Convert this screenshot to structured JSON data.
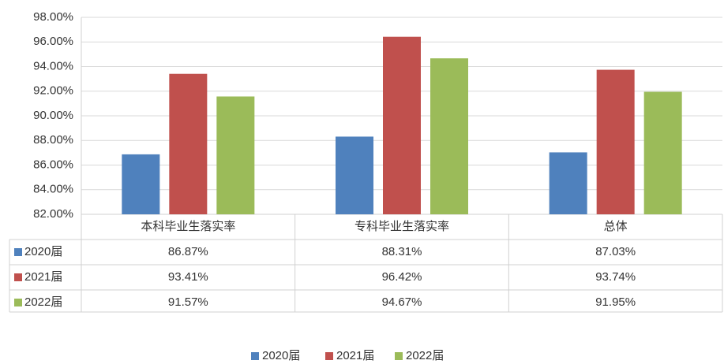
{
  "chart_data": {
    "type": "bar",
    "categories": [
      "本科毕业生落实率",
      "专科毕业生落实率",
      "总体"
    ],
    "series": [
      {
        "name": "2020届",
        "color": "#4f81bd",
        "values": [
          86.87,
          88.31,
          87.03
        ],
        "value_labels": [
          "86.87%",
          "88.31%",
          "87.03%"
        ]
      },
      {
        "name": "2021届",
        "color": "#c0504d",
        "values": [
          93.41,
          96.42,
          93.74
        ],
        "value_labels": [
          "93.41%",
          "96.42%",
          "93.74%"
        ]
      },
      {
        "name": "2022届",
        "color": "#9bbb59",
        "values": [
          91.57,
          94.67,
          91.95
        ],
        "value_labels": [
          "91.57%",
          "94.67%",
          "91.95%"
        ]
      }
    ],
    "ylim": [
      82,
      98
    ],
    "yticks": [
      {
        "value": 82,
        "label": "82.00%"
      },
      {
        "value": 84,
        "label": "84.00%"
      },
      {
        "value": 86,
        "label": "86.00%"
      },
      {
        "value": 88,
        "label": "88.00%"
      },
      {
        "value": 90,
        "label": "90.00%"
      },
      {
        "value": 92,
        "label": "92.00%"
      },
      {
        "value": 94,
        "label": "94.00%"
      },
      {
        "value": 96,
        "label": "96.00%"
      },
      {
        "value": 98,
        "label": "98.00%"
      }
    ],
    "grid": true,
    "legend": "bottom"
  }
}
